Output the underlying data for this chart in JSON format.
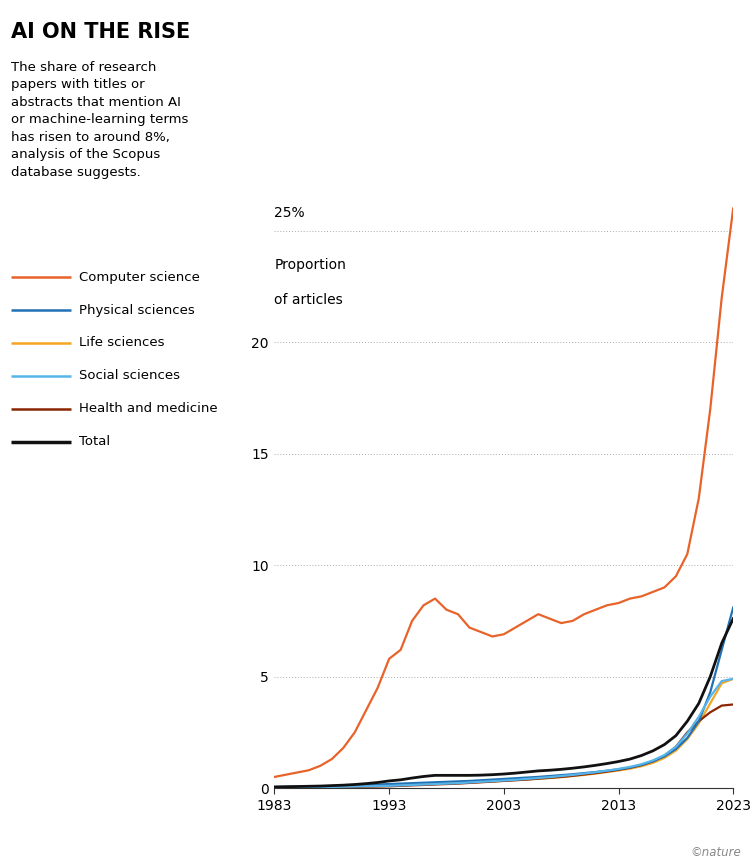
{
  "title": "AI ON THE RISE",
  "subtitle": "The share of research\npapers with titles or\nabstracts that mention AI\nor machine-learning terms\nhas risen to around 8%,\nanalysis of the Scopus\ndatabase suggests.",
  "background_color": "#ffffff",
  "years": [
    1983,
    1984,
    1985,
    1986,
    1987,
    1988,
    1989,
    1990,
    1991,
    1992,
    1993,
    1994,
    1995,
    1996,
    1997,
    1998,
    1999,
    2000,
    2001,
    2002,
    2003,
    2004,
    2005,
    2006,
    2007,
    2008,
    2009,
    2010,
    2011,
    2012,
    2013,
    2014,
    2015,
    2016,
    2017,
    2018,
    2019,
    2020,
    2021,
    2022,
    2023
  ],
  "computer_science": [
    0.5,
    0.6,
    0.7,
    0.8,
    1.0,
    1.3,
    1.8,
    2.5,
    3.5,
    4.5,
    5.8,
    6.2,
    7.5,
    8.2,
    8.5,
    8.0,
    7.8,
    7.2,
    7.0,
    6.8,
    6.9,
    7.2,
    7.5,
    7.8,
    7.6,
    7.4,
    7.5,
    7.8,
    8.0,
    8.2,
    8.3,
    8.5,
    8.6,
    8.8,
    9.0,
    9.5,
    10.5,
    13.0,
    17.0,
    22.0,
    26.0
  ],
  "physical_sciences": [
    0.05,
    0.06,
    0.06,
    0.07,
    0.08,
    0.09,
    0.1,
    0.12,
    0.14,
    0.16,
    0.18,
    0.2,
    0.22,
    0.24,
    0.26,
    0.28,
    0.3,
    0.32,
    0.35,
    0.38,
    0.41,
    0.44,
    0.47,
    0.5,
    0.54,
    0.58,
    0.62,
    0.67,
    0.72,
    0.78,
    0.84,
    0.92,
    1.04,
    1.2,
    1.42,
    1.75,
    2.25,
    3.0,
    4.3,
    6.2,
    8.1
  ],
  "life_sciences": [
    0.02,
    0.02,
    0.03,
    0.03,
    0.04,
    0.05,
    0.06,
    0.07,
    0.08,
    0.09,
    0.1,
    0.12,
    0.14,
    0.16,
    0.18,
    0.2,
    0.22,
    0.24,
    0.27,
    0.3,
    0.33,
    0.36,
    0.39,
    0.42,
    0.45,
    0.49,
    0.54,
    0.59,
    0.65,
    0.72,
    0.79,
    0.87,
    0.98,
    1.13,
    1.35,
    1.68,
    2.2,
    2.9,
    3.8,
    4.7,
    4.9
  ],
  "social_sciences": [
    0.02,
    0.02,
    0.03,
    0.03,
    0.04,
    0.05,
    0.06,
    0.07,
    0.08,
    0.09,
    0.1,
    0.12,
    0.14,
    0.16,
    0.18,
    0.2,
    0.22,
    0.25,
    0.28,
    0.31,
    0.34,
    0.37,
    0.41,
    0.45,
    0.49,
    0.54,
    0.59,
    0.65,
    0.71,
    0.78,
    0.86,
    0.95,
    1.07,
    1.24,
    1.48,
    1.85,
    2.45,
    3.2,
    4.1,
    4.8,
    4.9
  ],
  "health_medicine": [
    0.01,
    0.01,
    0.02,
    0.02,
    0.03,
    0.03,
    0.04,
    0.05,
    0.06,
    0.07,
    0.08,
    0.1,
    0.12,
    0.14,
    0.16,
    0.18,
    0.2,
    0.23,
    0.26,
    0.29,
    0.32,
    0.35,
    0.38,
    0.42,
    0.46,
    0.5,
    0.55,
    0.61,
    0.67,
    0.74,
    0.82,
    0.91,
    1.03,
    1.2,
    1.45,
    1.85,
    2.5,
    3.0,
    3.4,
    3.7,
    3.75
  ],
  "total": [
    0.05,
    0.06,
    0.07,
    0.08,
    0.09,
    0.11,
    0.13,
    0.16,
    0.2,
    0.25,
    0.32,
    0.37,
    0.45,
    0.52,
    0.57,
    0.57,
    0.57,
    0.57,
    0.58,
    0.6,
    0.63,
    0.67,
    0.72,
    0.77,
    0.8,
    0.84,
    0.89,
    0.95,
    1.02,
    1.1,
    1.19,
    1.3,
    1.46,
    1.67,
    1.95,
    2.35,
    3.0,
    3.8,
    5.0,
    6.5,
    7.6
  ],
  "colors": {
    "computer_science": "#E8632A",
    "physical_sciences": "#2171B5",
    "life_sciences": "#F5A623",
    "social_sciences": "#56B4E9",
    "health_medicine": "#8B2500",
    "total": "#111111"
  },
  "legend_labels": [
    "Computer science",
    "Physical sciences",
    "Life sciences",
    "Social sciences",
    "Health and medicine",
    "Total"
  ],
  "yticks": [
    0,
    5,
    10,
    15,
    20,
    25
  ],
  "xticks": [
    1983,
    1993,
    2003,
    2013,
    2023
  ],
  "ylim": [
    0,
    27
  ],
  "xlim": [
    1983,
    2023
  ]
}
